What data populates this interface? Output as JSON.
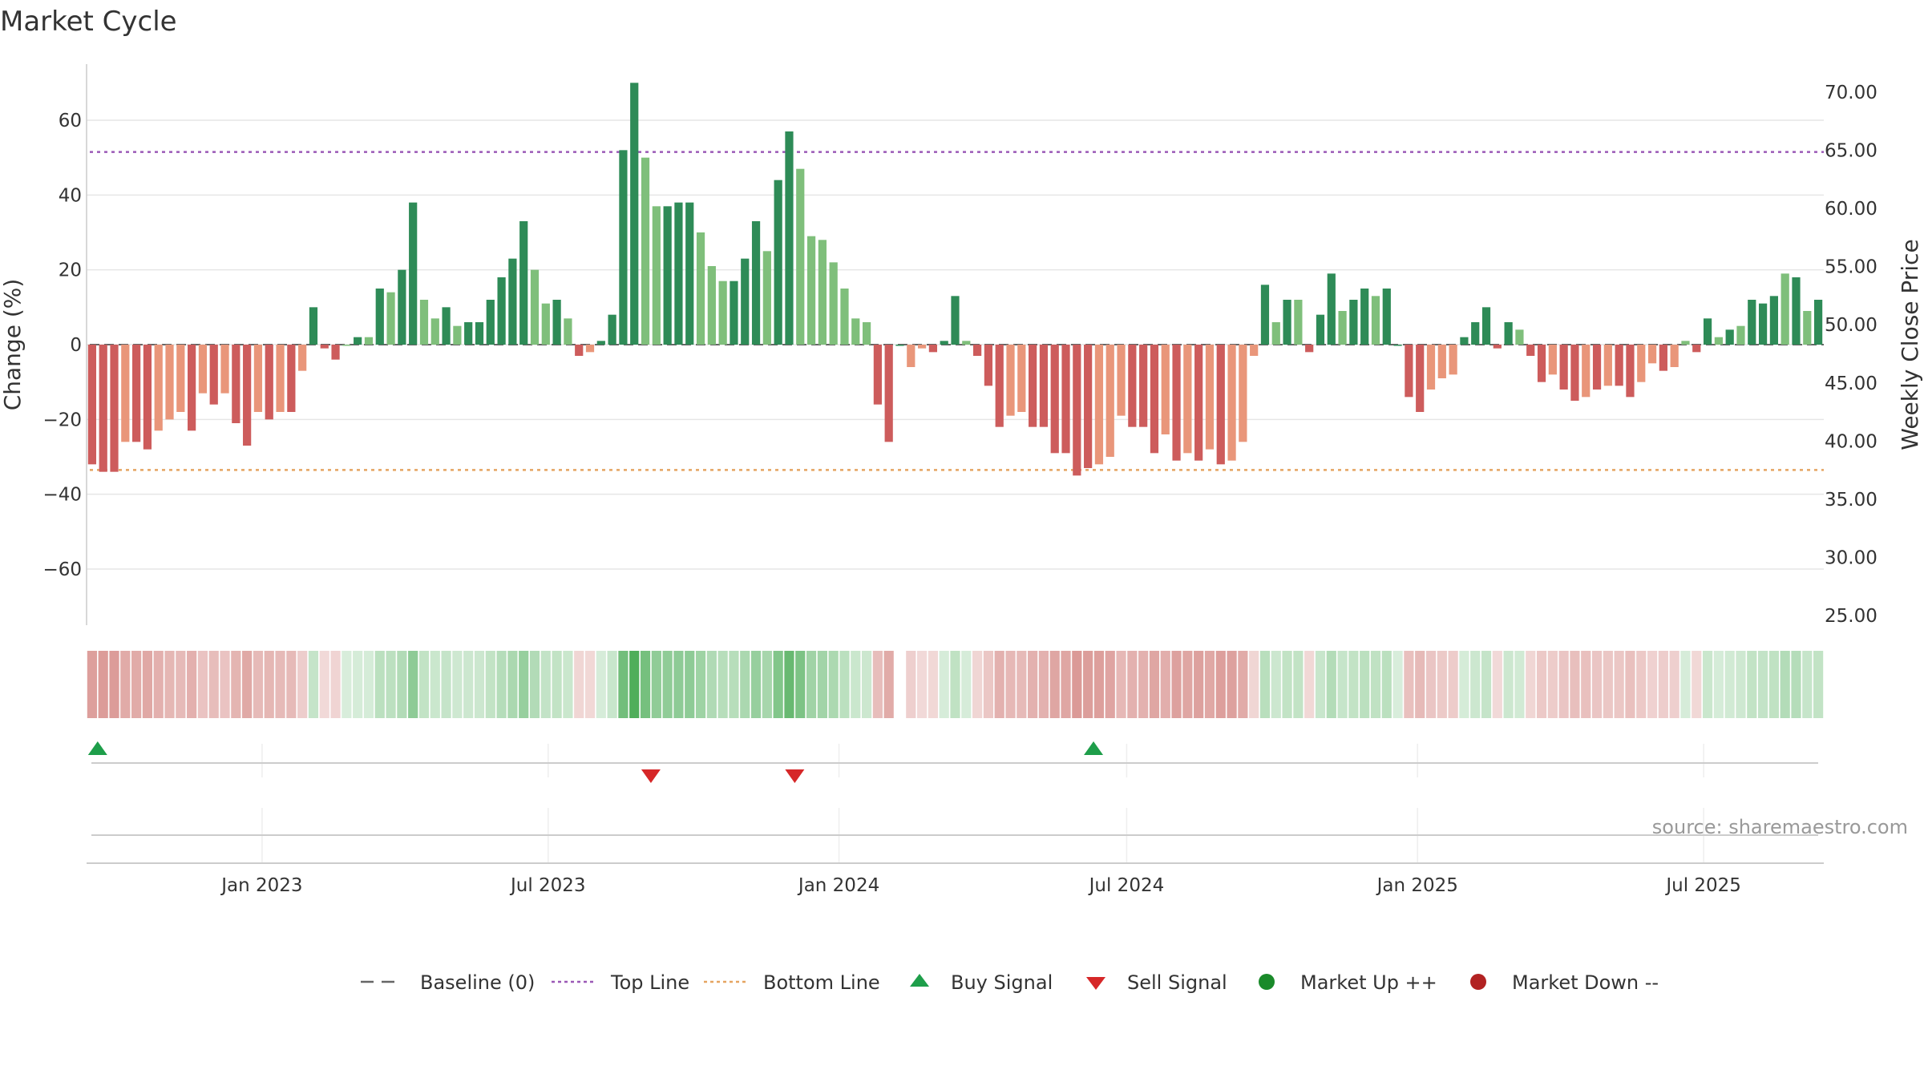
{
  "chart_data": {
    "type": "bar",
    "title": "Market Cycle",
    "source": "source: sharemaestro.com",
    "y_left": {
      "label": "Change (%)",
      "ylim": [
        -75,
        75
      ],
      "ticks": [
        60,
        40,
        20,
        0,
        -20,
        -40,
        -60
      ],
      "tick_labels": [
        "60",
        "40",
        "20",
        "0",
        "−20",
        "−40",
        "−60"
      ]
    },
    "y_right": {
      "label": "Weekly Close Price",
      "ticks": [
        70,
        65,
        60,
        55,
        50,
        45,
        40,
        35,
        30,
        25
      ],
      "tick_labels": [
        "70.00",
        "65.00",
        "60.00",
        "55.00",
        "50.00",
        "45.00",
        "40.00",
        "35.00",
        "30.00",
        "25.00"
      ]
    },
    "x_axis": {
      "start": "2022-09-12",
      "end": "2025-09-15",
      "ticks": [
        "2023-01-01",
        "2023-07-01",
        "2024-01-01",
        "2024-07-01",
        "2025-01-01",
        "2025-07-01"
      ],
      "tick_labels": [
        "Jan 2023",
        "Jul 2023",
        "Jan 2024",
        "Jul 2024",
        "Jan 2025",
        "Jul 2025"
      ]
    },
    "top_line": 51.5,
    "bottom_line": -33.5,
    "grid": true,
    "weeks": {
      "start": "2022-09-12",
      "values": [
        -32,
        -34,
        -34,
        -26,
        -26,
        -28,
        -23,
        -20,
        -18,
        -23,
        -13,
        -16,
        -13,
        -21,
        -27,
        -18,
        -20,
        -18,
        -18,
        -7,
        10,
        -1,
        -4,
        0,
        2,
        2,
        15,
        14,
        20,
        38,
        12,
        7,
        10,
        5,
        6,
        6,
        12,
        18,
        23,
        33,
        20,
        11,
        12,
        7,
        -3,
        -2,
        1,
        8,
        52,
        70,
        50,
        37,
        37,
        38,
        38,
        30,
        21,
        17,
        17,
        23,
        33,
        25,
        44,
        57,
        47,
        29,
        28,
        22,
        15,
        7,
        6,
        -16,
        -26,
        0,
        -6,
        -1,
        -2,
        1,
        13,
        1,
        -3,
        -11,
        -22,
        -19,
        -18,
        -22,
        -22,
        -29,
        -29,
        -35,
        -33,
        -32,
        -30,
        -19,
        -22,
        -22,
        -29,
        -24,
        -31,
        -29,
        -31,
        -28,
        -32,
        -31,
        -26,
        -3,
        16,
        6,
        12,
        12,
        -2,
        8,
        19,
        9,
        12,
        15,
        13,
        15,
        0,
        -14,
        -18,
        -12,
        -9,
        -8,
        2,
        6,
        10,
        -1,
        6,
        4,
        -3,
        -10,
        -8,
        -12,
        -15,
        -14,
        -12,
        -11,
        -11,
        -14,
        -10,
        -5,
        -7,
        -6,
        1,
        -2,
        7,
        2,
        4,
        5,
        12,
        11,
        13,
        19,
        18,
        9,
        12
      ],
      "shade": [
        "dark",
        "dark",
        "dark",
        "light",
        "dark",
        "dark",
        "light",
        "light",
        "light",
        "dark",
        "light",
        "dark",
        "light",
        "dark",
        "dark",
        "light",
        "dark",
        "light",
        "dark",
        "light",
        "dark",
        "dark",
        "dark",
        "light",
        "dark",
        "light",
        "dark",
        "light",
        "dark",
        "dark",
        "light",
        "light",
        "dark",
        "light",
        "dark",
        "dark",
        "dark",
        "dark",
        "dark",
        "dark",
        "light",
        "light",
        "dark",
        "light",
        "dark",
        "light",
        "dark",
        "dark",
        "dark",
        "dark",
        "light",
        "light",
        "dark",
        "dark",
        "dark",
        "light",
        "light",
        "light",
        "dark",
        "dark",
        "dark",
        "light",
        "dark",
        "dark",
        "light",
        "light",
        "light",
        "light",
        "light",
        "light",
        "light",
        "dark",
        "dark",
        "dark",
        "light",
        "light",
        "dark",
        "dark",
        "dark",
        "light",
        "dark",
        "dark",
        "dark",
        "light",
        "light",
        "dark",
        "dark",
        "dark",
        "dark",
        "dark",
        "dark",
        "light",
        "light",
        "light",
        "dark",
        "dark",
        "dark",
        "light",
        "dark",
        "light",
        "dark",
        "light",
        "dark",
        "light",
        "light",
        "light",
        "dark",
        "light",
        "dark",
        "light",
        "dark",
        "dark",
        "dark",
        "light",
        "dark",
        "dark",
        "light",
        "dark",
        "dark",
        "dark",
        "dark",
        "light",
        "light",
        "light",
        "dark",
        "dark",
        "dark",
        "dark",
        "dark",
        "light",
        "dark",
        "dark",
        "light",
        "dark",
        "dark",
        "light",
        "dark",
        "light",
        "dark",
        "dark",
        "light",
        "light",
        "dark",
        "light",
        "light",
        "dark",
        "dark",
        "light",
        "dark",
        "light",
        "dark",
        "dark",
        "dark",
        "light",
        "dark",
        "light",
        "dark"
      ],
      "missing_strip_index": 73
    },
    "signals": [
      {
        "type": "buy",
        "date": "2022-09-19"
      },
      {
        "type": "sell",
        "date": "2023-09-04"
      },
      {
        "type": "sell",
        "date": "2023-12-04"
      },
      {
        "type": "buy",
        "date": "2024-06-10"
      }
    ],
    "colors": {
      "up_dark": "#2e8b57",
      "up_light": "#7fbf7b",
      "down_dark": "#cd5c5c",
      "down_light": "#e9967a",
      "top_line": "#9b59b6",
      "bottom_line": "#e5a461",
      "buy": "#1e9e4a",
      "sell": "#d62728",
      "market_up": "#1a8a2a",
      "market_down": "#b22222",
      "baseline": "#666666"
    },
    "legend": {
      "placement": "bottom-center",
      "items": [
        {
          "label": "Baseline (0)",
          "kind": "dash"
        },
        {
          "label": "Top Line",
          "kind": "dotted-top"
        },
        {
          "label": "Bottom Line",
          "kind": "dotted-bottom"
        },
        {
          "label": "Buy Signal",
          "kind": "tri-up"
        },
        {
          "label": "Sell Signal",
          "kind": "tri-down"
        },
        {
          "label": "Market Up ++",
          "kind": "dot-up"
        },
        {
          "label": "Market Down --",
          "kind": "dot-down"
        }
      ]
    }
  }
}
